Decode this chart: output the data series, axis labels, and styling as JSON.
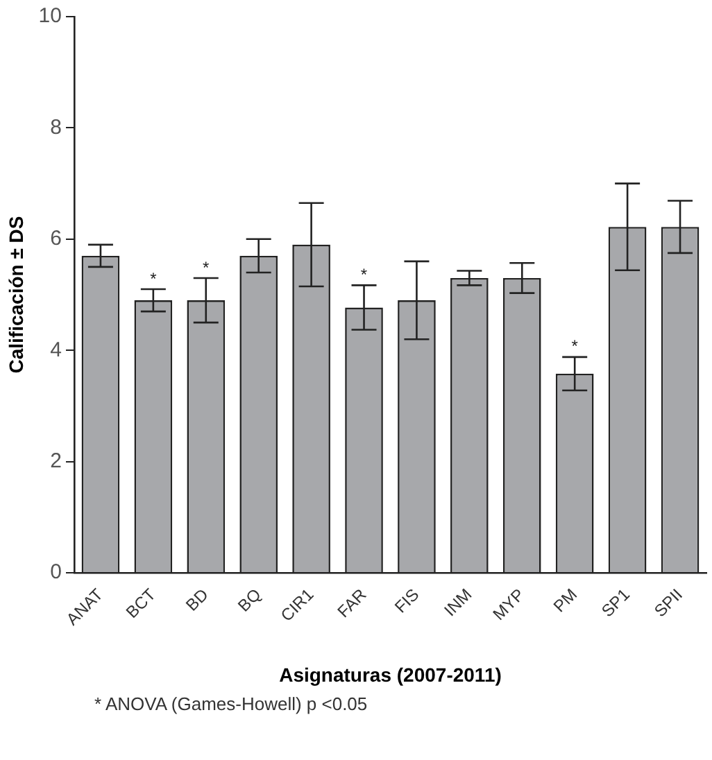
{
  "chart_data": {
    "type": "bar",
    "xlabel": "Asignaturas (2007-2011)",
    "ylabel": "Calificación ± DS",
    "categories": [
      "ANAT",
      "BCT",
      "BD",
      "BQ",
      "CIR1",
      "FAR",
      "FIS",
      "INM",
      "MYP",
      "PM",
      "SP1",
      "SPII"
    ],
    "values": [
      5.7,
      4.9,
      4.9,
      5.7,
      5.9,
      4.77,
      4.9,
      5.3,
      5.3,
      3.58,
      6.22,
      6.22
    ],
    "errors": [
      0.2,
      0.2,
      0.4,
      0.3,
      0.75,
      0.4,
      0.7,
      0.13,
      0.27,
      0.3,
      0.78,
      0.47
    ],
    "color": "#a7a8ab",
    "ylim": [
      0,
      10
    ],
    "yticks": [
      0,
      2,
      4,
      6,
      8,
      10
    ],
    "grid": false,
    "annotations": [
      {
        "text": "*",
        "x": "BCT",
        "y": 5.1
      },
      {
        "text": "*",
        "x": "BD",
        "y": 5.3
      },
      {
        "text": "*",
        "x": "FAR",
        "y": 5.17
      },
      {
        "text": "*",
        "x": "PM",
        "y": 3.88
      },
      "* ANOVA (Games-Howell) p <0.05"
    ]
  }
}
